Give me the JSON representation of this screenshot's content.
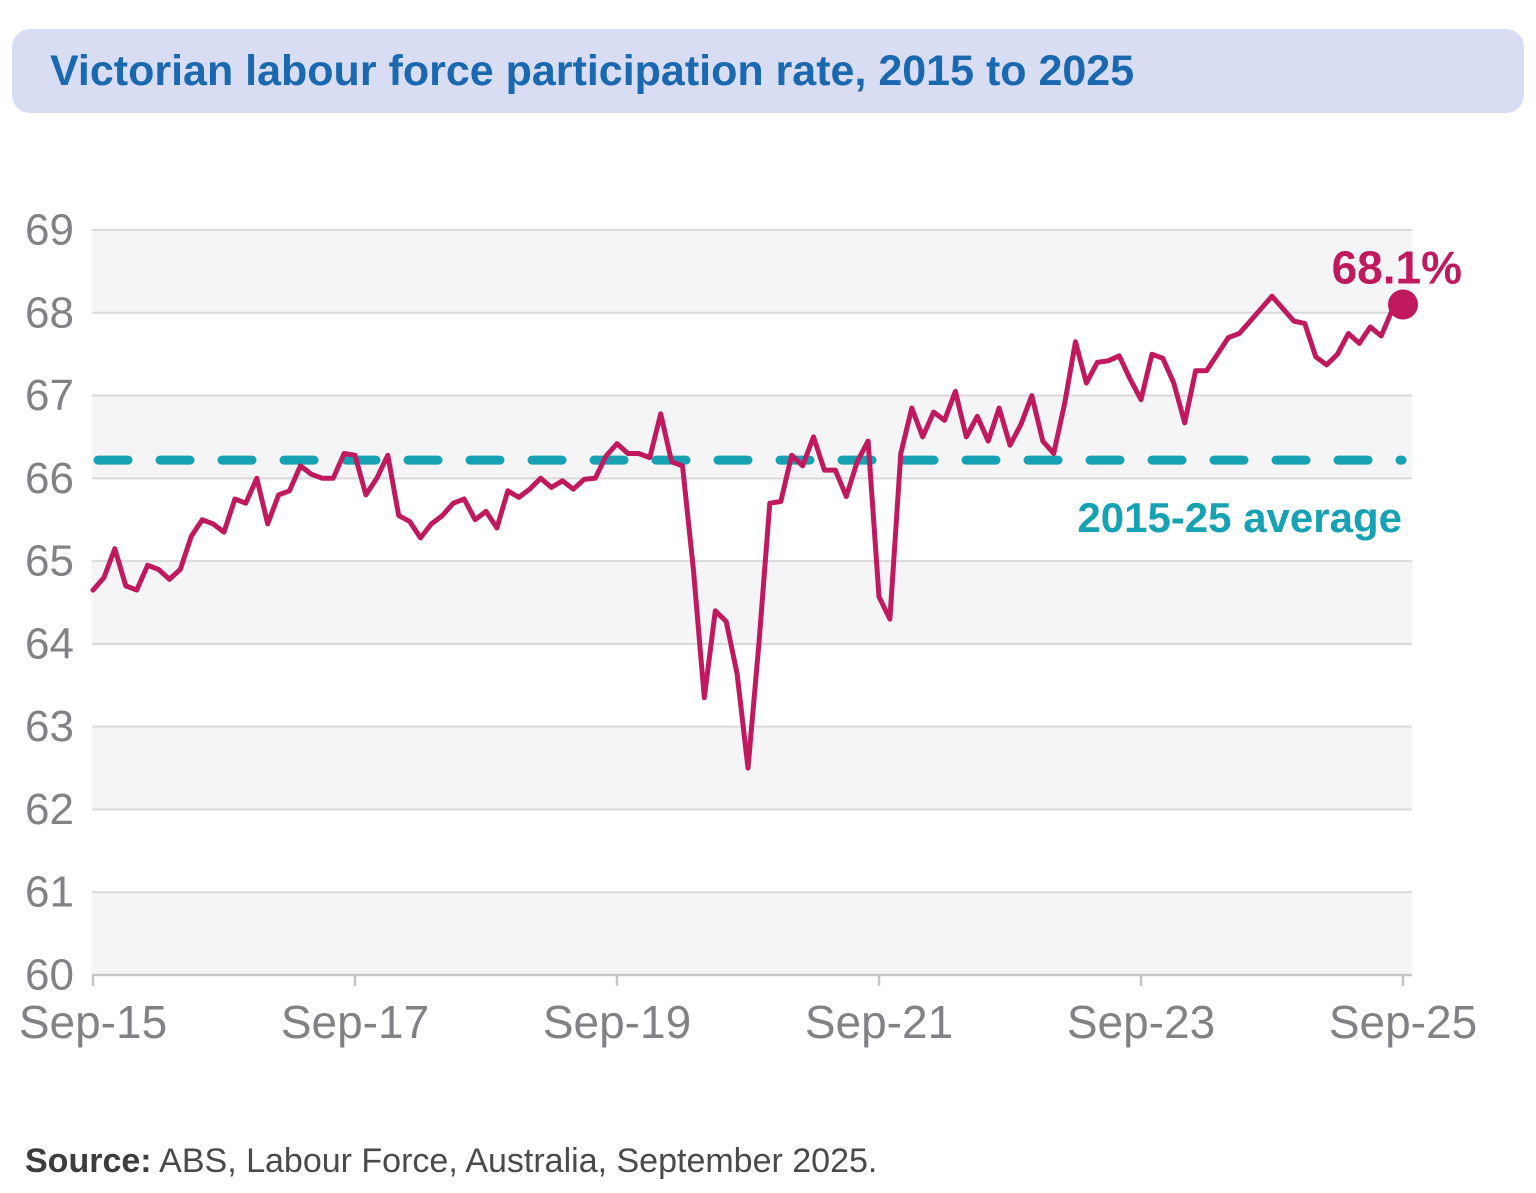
{
  "title": {
    "text": "Victorian labour force participation rate, 2015 to 2025"
  },
  "source": {
    "label": "Source:",
    "text": " ABS, Labour Force, Australia, September 2025."
  },
  "colors": {
    "banner_bg": "#d8ddf3",
    "title_text": "#1a69b0",
    "line": "#c0195e",
    "marker": "#c0195e",
    "end_label": "#c0195e",
    "average_line": "#16a2b3",
    "average_label": "#16a2b3",
    "axis_text": "#828286",
    "gridline": "#d9d9dc",
    "axis_line": "#c6c6ca",
    "band_fill": "#f5f5f8"
  },
  "chart_data": {
    "type": "line",
    "title": "Victorian labour force participation rate, 2015 to 2025",
    "unit": "%",
    "frequency": "monthly",
    "x_start": "Sep-2015",
    "x_end": "Sep-2025",
    "x_tick_labels": [
      "Sep-15",
      "Sep-17",
      "Sep-19",
      "Sep-21",
      "Sep-23",
      "Sep-25"
    ],
    "months_per_x_tick": 24,
    "y_ticks": [
      60,
      61,
      62,
      63,
      64,
      65,
      66,
      67,
      68,
      69
    ],
    "ylim": [
      60,
      69
    ],
    "grid": "horizontal",
    "legend_position": "none",
    "series": [
      {
        "name": "Victorian labour force participation rate (%)",
        "values": [
          64.65,
          64.8,
          65.15,
          64.7,
          64.65,
          64.95,
          64.9,
          64.78,
          64.9,
          65.3,
          65.5,
          65.45,
          65.35,
          65.75,
          65.7,
          66.0,
          65.45,
          65.8,
          65.85,
          66.15,
          66.05,
          66.0,
          66.0,
          66.3,
          66.28,
          65.8,
          66.0,
          66.28,
          65.55,
          65.48,
          65.28,
          65.45,
          65.55,
          65.7,
          65.75,
          65.5,
          65.6,
          65.4,
          65.85,
          65.77,
          65.87,
          66.0,
          65.89,
          65.97,
          65.87,
          65.99,
          66.0,
          66.27,
          66.42,
          66.3,
          66.3,
          66.25,
          66.78,
          66.2,
          66.15,
          64.9,
          63.35,
          64.4,
          64.27,
          63.64,
          62.5,
          64.0,
          65.7,
          65.72,
          66.28,
          66.15,
          66.5,
          66.1,
          66.1,
          65.78,
          66.2,
          66.45,
          64.57,
          64.3,
          66.3,
          66.85,
          66.5,
          66.8,
          66.7,
          67.05,
          66.5,
          66.75,
          66.45,
          66.85,
          66.4,
          66.65,
          67.0,
          66.45,
          66.3,
          66.9,
          67.65,
          67.15,
          67.4,
          67.42,
          67.48,
          67.2,
          66.95,
          67.5,
          67.45,
          67.15,
          66.67,
          67.3,
          67.3,
          67.5,
          67.7,
          67.75,
          67.9,
          68.05,
          68.2,
          68.05,
          67.9,
          67.87,
          67.47,
          67.37,
          67.5,
          67.75,
          67.63,
          67.83,
          67.72,
          68.03,
          68.1
        ]
      }
    ],
    "average_line": {
      "value": 66.22,
      "label": "2015-25 average"
    },
    "end_point": {
      "x_label": "Sep-25",
      "value": 68.1,
      "label": "68.1%"
    }
  }
}
